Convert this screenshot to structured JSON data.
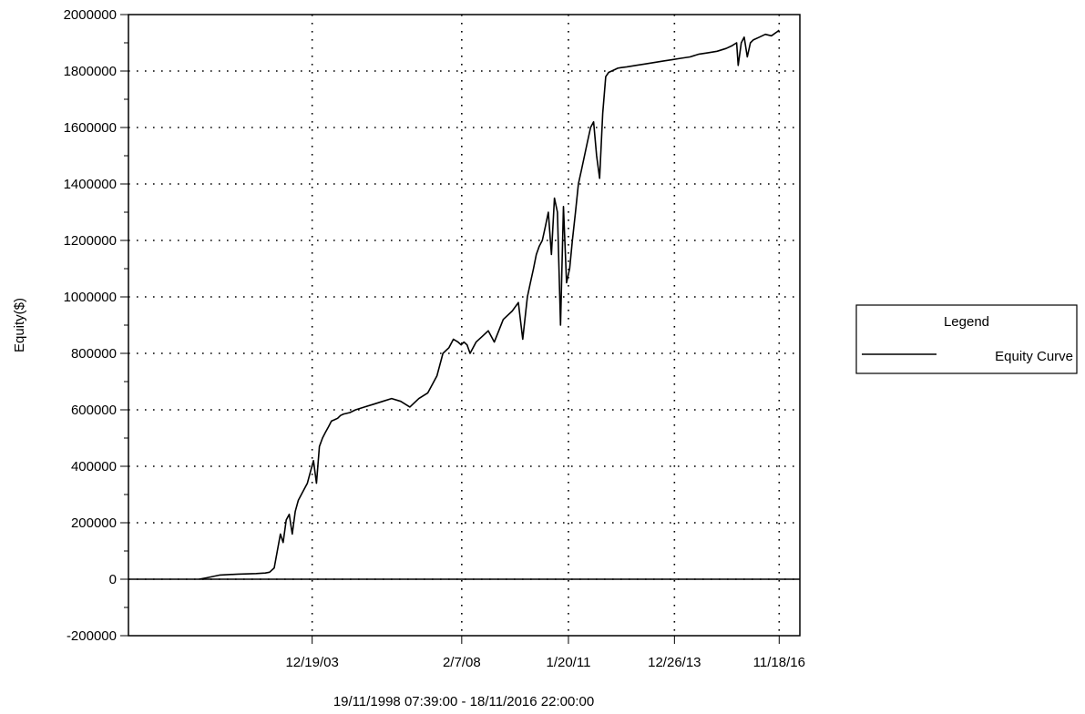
{
  "chart_data": {
    "type": "line",
    "title": "",
    "xlabel": "19/11/1998 07:39:00 - 18/11/2016 22:00:00",
    "ylabel": "Equity($)",
    "ylim": [
      -200000,
      2000000
    ],
    "yticks": [
      -200000,
      0,
      200000,
      400000,
      600000,
      800000,
      1000000,
      1200000,
      1400000,
      1600000,
      1800000,
      2000000
    ],
    "xlim": [
      "1998-11-19",
      "2017-06-15"
    ],
    "xticks": [
      "12/19/03",
      "2/7/08",
      "1/20/11",
      "12/26/13",
      "11/18/16"
    ],
    "xtick_dates": [
      "2003-12-19",
      "2008-02-07",
      "2011-01-20",
      "2013-12-26",
      "2016-11-18"
    ],
    "grid": true,
    "legend_position": "right",
    "series": [
      {
        "name": "Equity Curve",
        "color": "#000000",
        "x": [
          "2000-11-01",
          "2001-01-15",
          "2001-06-01",
          "2001-12-01",
          "2002-06-01",
          "2002-09-01",
          "2002-10-15",
          "2002-12-01",
          "2003-01-01",
          "2003-02-01",
          "2003-03-01",
          "2003-04-01",
          "2003-05-01",
          "2003-06-01",
          "2003-07-01",
          "2003-08-01",
          "2003-09-01",
          "2003-10-01",
          "2003-11-01",
          "2003-12-01",
          "2004-01-01",
          "2004-02-01",
          "2004-03-01",
          "2004-04-01",
          "2004-05-01",
          "2004-06-01",
          "2004-07-01",
          "2004-08-01",
          "2004-09-01",
          "2004-10-01",
          "2004-11-01",
          "2005-01-01",
          "2005-03-01",
          "2005-06-01",
          "2005-09-01",
          "2005-12-01",
          "2006-03-01",
          "2006-06-01",
          "2006-09-01",
          "2006-12-01",
          "2007-03-01",
          "2007-06-01",
          "2007-08-01",
          "2007-10-01",
          "2007-11-15",
          "2008-01-01",
          "2008-02-01",
          "2008-03-01",
          "2008-04-01",
          "2008-05-01",
          "2008-07-01",
          "2008-09-01",
          "2008-11-01",
          "2009-01-01",
          "2009-04-01",
          "2009-07-01",
          "2009-09-01",
          "2009-10-15",
          "2009-12-01",
          "2010-01-01",
          "2010-02-01",
          "2010-03-01",
          "2010-04-01",
          "2010-05-01",
          "2010-06-01",
          "2010-07-01",
          "2010-08-01",
          "2010-09-01",
          "2010-10-01",
          "2010-11-01",
          "2010-12-01",
          "2011-01-01",
          "2011-02-01",
          "2011-03-01",
          "2011-04-01",
          "2011-05-01",
          "2011-06-01",
          "2011-07-01",
          "2011-08-01",
          "2011-09-01",
          "2011-10-01",
          "2011-11-01",
          "2011-12-01",
          "2012-01-01",
          "2012-02-01",
          "2012-03-01",
          "2012-04-01",
          "2012-05-01",
          "2012-06-01",
          "2012-07-01",
          "2012-09-01",
          "2012-12-01",
          "2013-03-01",
          "2013-06-01",
          "2013-09-01",
          "2013-12-01",
          "2014-03-01",
          "2014-06-01",
          "2014-09-01",
          "2014-12-01",
          "2015-03-01",
          "2015-06-01",
          "2015-08-01",
          "2015-09-15",
          "2015-10-01",
          "2015-11-01",
          "2015-12-01",
          "2016-01-01",
          "2016-02-01",
          "2016-03-01",
          "2016-05-01",
          "2016-07-01",
          "2016-09-01",
          "2016-11-01",
          "2016-11-18"
        ],
        "y": [
          0,
          5000,
          15000,
          18000,
          20000,
          22000,
          25000,
          40000,
          100000,
          160000,
          130000,
          210000,
          230000,
          160000,
          240000,
          280000,
          300000,
          320000,
          340000,
          380000,
          420000,
          340000,
          470000,
          500000,
          520000,
          540000,
          560000,
          565000,
          570000,
          580000,
          585000,
          590000,
          600000,
          610000,
          620000,
          630000,
          640000,
          630000,
          610000,
          640000,
          660000,
          720000,
          800000,
          820000,
          850000,
          840000,
          830000,
          840000,
          830000,
          800000,
          840000,
          860000,
          880000,
          840000,
          920000,
          950000,
          980000,
          850000,
          1000000,
          1050000,
          1100000,
          1150000,
          1180000,
          1200000,
          1250000,
          1300000,
          1150000,
          1350000,
          1300000,
          900000,
          1320000,
          1050000,
          1100000,
          1200000,
          1300000,
          1400000,
          1450000,
          1500000,
          1550000,
          1600000,
          1620000,
          1500000,
          1420000,
          1650000,
          1780000,
          1795000,
          1800000,
          1805000,
          1810000,
          1812000,
          1815000,
          1820000,
          1825000,
          1830000,
          1835000,
          1840000,
          1845000,
          1850000,
          1860000,
          1865000,
          1870000,
          1880000,
          1890000,
          1900000,
          1820000,
          1900000,
          1920000,
          1850000,
          1900000,
          1910000,
          1920000,
          1930000,
          1925000,
          1940000,
          1945000
        ]
      }
    ]
  },
  "legend": {
    "title": "Legend",
    "entries": [
      "Equity Curve"
    ]
  }
}
